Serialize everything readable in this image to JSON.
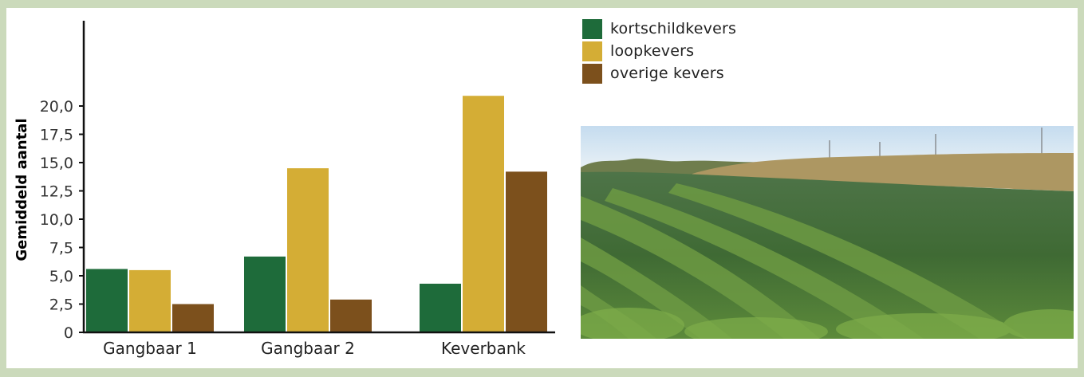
{
  "colors": {
    "background": "#cbdabb",
    "card": "#ffffff",
    "kortschildkevers": "#1e6b3a",
    "loopkevers": "#d4ad35",
    "overige": "#7c501c"
  },
  "legend": {
    "items": [
      {
        "label": "kortschildkevers",
        "color": "#1e6b3a"
      },
      {
        "label": "loopkevers",
        "color": "#d4ad35"
      },
      {
        "label": "overige kevers",
        "color": "#7c501c"
      }
    ]
  },
  "chart_data": {
    "type": "bar",
    "title": "",
    "xlabel": "",
    "ylabel": "Gemiddeld aantal",
    "categories": [
      "Gangbaar 1",
      "Gangbaar 2",
      "Keverbank"
    ],
    "yticks": [
      "0",
      "2,5",
      "5,0",
      "7,5",
      "10,0",
      "12,5",
      "15,0",
      "17,5",
      "20,0"
    ],
    "ylim": [
      0,
      22
    ],
    "grid": false,
    "legend_position": "right",
    "series": [
      {
        "name": "kortschildkevers",
        "color": "#1e6b3a",
        "values": [
          5.6,
          6.7,
          4.3
        ]
      },
      {
        "name": "loopkevers",
        "color": "#d4ad35",
        "values": [
          5.5,
          14.5,
          20.9
        ]
      },
      {
        "name": "overige kevers",
        "color": "#7c501c",
        "values": [
          2.5,
          2.9,
          14.2
        ]
      }
    ]
  },
  "photo": {
    "subject": "cabbage-field-with-beetle-bank"
  }
}
